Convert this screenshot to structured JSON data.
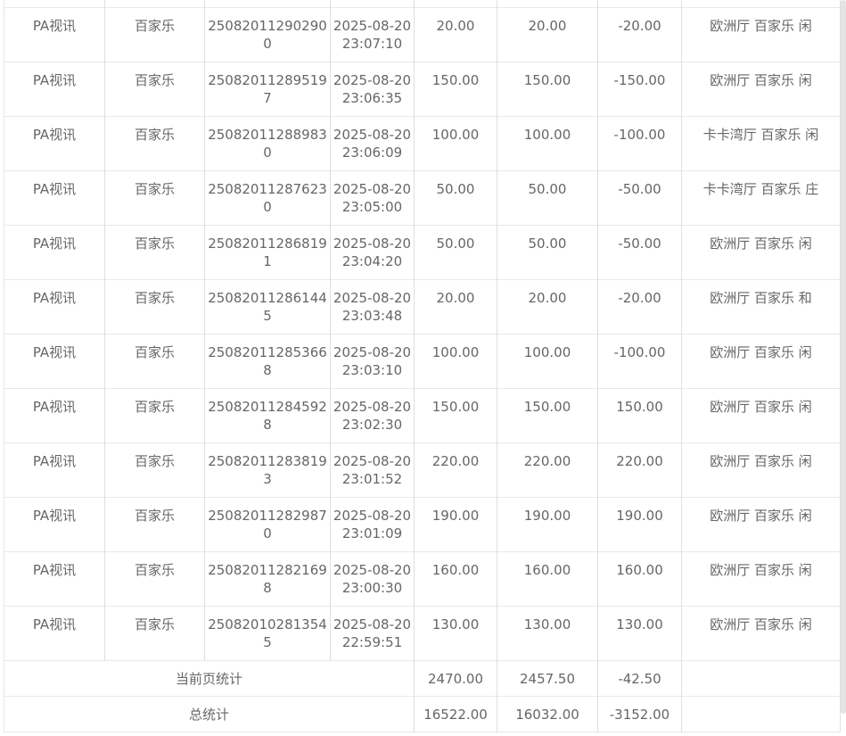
{
  "rows": [
    {
      "platform": "PA视讯",
      "game": "百家乐",
      "order": "250820112902900",
      "time": "2025-08-20 23:07:10",
      "bet": "20.00",
      "valid": "20.00",
      "win": "-20.00",
      "detail": "欧洲厅 百家乐 闲"
    },
    {
      "platform": "PA视讯",
      "game": "百家乐",
      "order": "250820112895197",
      "time": "2025-08-20 23:06:35",
      "bet": "150.00",
      "valid": "150.00",
      "win": "-150.00",
      "detail": "欧洲厅 百家乐 闲"
    },
    {
      "platform": "PA视讯",
      "game": "百家乐",
      "order": "250820112889830",
      "time": "2025-08-20 23:06:09",
      "bet": "100.00",
      "valid": "100.00",
      "win": "-100.00",
      "detail": "卡卡湾厅 百家乐 闲"
    },
    {
      "platform": "PA视讯",
      "game": "百家乐",
      "order": "250820112876230",
      "time": "2025-08-20 23:05:00",
      "bet": "50.00",
      "valid": "50.00",
      "win": "-50.00",
      "detail": "卡卡湾厅 百家乐 庄"
    },
    {
      "platform": "PA视讯",
      "game": "百家乐",
      "order": "250820112868191",
      "time": "2025-08-20 23:04:20",
      "bet": "50.00",
      "valid": "50.00",
      "win": "-50.00",
      "detail": "欧洲厅 百家乐 闲"
    },
    {
      "platform": "PA视讯",
      "game": "百家乐",
      "order": "250820112861445",
      "time": "2025-08-20 23:03:48",
      "bet": "20.00",
      "valid": "20.00",
      "win": "-20.00",
      "detail": "欧洲厅 百家乐 和"
    },
    {
      "platform": "PA视讯",
      "game": "百家乐",
      "order": "250820112853668",
      "time": "2025-08-20 23:03:10",
      "bet": "100.00",
      "valid": "100.00",
      "win": "-100.00",
      "detail": "欧洲厅 百家乐 闲"
    },
    {
      "platform": "PA视讯",
      "game": "百家乐",
      "order": "250820112845928",
      "time": "2025-08-20 23:02:30",
      "bet": "150.00",
      "valid": "150.00",
      "win": "150.00",
      "detail": "欧洲厅 百家乐 闲"
    },
    {
      "platform": "PA视讯",
      "game": "百家乐",
      "order": "250820112838193",
      "time": "2025-08-20 23:01:52",
      "bet": "220.00",
      "valid": "220.00",
      "win": "220.00",
      "detail": "欧洲厅 百家乐 闲"
    },
    {
      "platform": "PA视讯",
      "game": "百家乐",
      "order": "250820112829870",
      "time": "2025-08-20 23:01:09",
      "bet": "190.00",
      "valid": "190.00",
      "win": "190.00",
      "detail": "欧洲厅 百家乐 闲"
    },
    {
      "platform": "PA视讯",
      "game": "百家乐",
      "order": "250820112821698",
      "time": "2025-08-20 23:00:30",
      "bet": "160.00",
      "valid": "160.00",
      "win": "160.00",
      "detail": "欧洲厅 百家乐 闲"
    },
    {
      "platform": "PA视讯",
      "game": "百家乐",
      "order": "250820102813545",
      "time": "2025-08-20 22:59:51",
      "bet": "130.00",
      "valid": "130.00",
      "win": "130.00",
      "detail": "欧洲厅 百家乐 闲"
    }
  ],
  "page_summary": {
    "label": "当前页统计",
    "bet": "2470.00",
    "valid": "2457.50",
    "win": "-42.50"
  },
  "total_summary": {
    "label": "总统计",
    "bet": "16522.00",
    "valid": "16032.00",
    "win": "-3152.00"
  }
}
